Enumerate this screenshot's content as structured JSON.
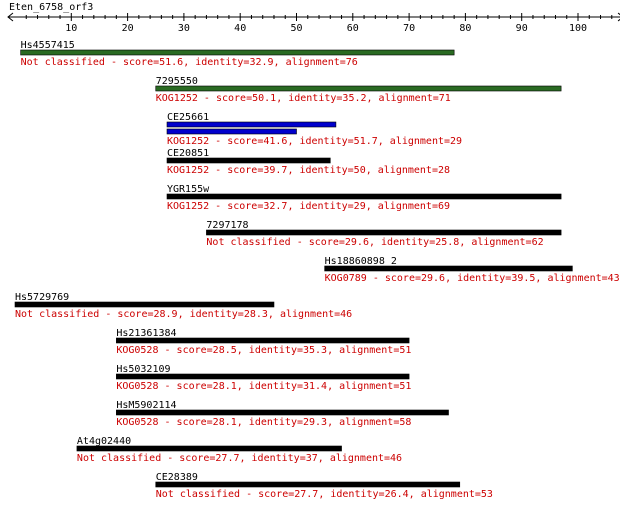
{
  "query": {
    "name": "Eten_6758_orf3"
  },
  "axis": {
    "min": 0,
    "max": 108,
    "labeled_ticks": [
      10,
      20,
      30,
      40,
      50,
      60,
      70,
      80,
      90,
      100
    ],
    "minor_step": 2
  },
  "colors": {
    "green": "#2a6a22",
    "blue": "#0000cc",
    "black": "#000000",
    "red": "#cc0000"
  },
  "hits": [
    {
      "name": "Hs4557415",
      "start": 1,
      "end": 78,
      "color": "green",
      "category": "Not classified",
      "score": "51.6",
      "identity": "32.9",
      "alignment": "76"
    },
    {
      "name": "7295550",
      "start": 25,
      "end": 97,
      "color": "green",
      "category": "KOG1252",
      "score": "50.1",
      "identity": "35.2",
      "alignment": "71"
    },
    {
      "name": "CE25661",
      "start": 27,
      "end": 57,
      "end2": 50,
      "color": "blue",
      "category": "KOG1252",
      "score": "41.6",
      "identity": "51.7",
      "alignment": "29"
    },
    {
      "name": "CE20851",
      "start": 27,
      "end": 56,
      "color": "black",
      "category": "KOG1252",
      "score": "39.7",
      "identity": "50",
      "alignment": "28"
    },
    {
      "name": "YGR155w",
      "start": 27,
      "end": 97,
      "color": "black",
      "category": "KOG1252",
      "score": "32.7",
      "identity": "29",
      "alignment": "69"
    },
    {
      "name": "7297178",
      "start": 34,
      "end": 97,
      "color": "black",
      "category": "Not classified",
      "score": "29.6",
      "identity": "25.8",
      "alignment": "62"
    },
    {
      "name": "Hs18860898_2",
      "start": 55,
      "end": 99,
      "color": "black",
      "category": "KOG0789",
      "score": "29.6",
      "identity": "39.5",
      "alignment": "43"
    },
    {
      "name": "Hs5729769",
      "start": 0,
      "end": 46,
      "color": "black",
      "category": "Not classified",
      "score": "28.9",
      "identity": "28.3",
      "alignment": "46"
    },
    {
      "name": "Hs21361384",
      "start": 18,
      "end": 70,
      "color": "black",
      "category": "KOG0528",
      "score": "28.5",
      "identity": "35.3",
      "alignment": "51"
    },
    {
      "name": "Hs5032109",
      "start": 18,
      "end": 70,
      "color": "black",
      "category": "KOG0528",
      "score": "28.1",
      "identity": "31.4",
      "alignment": "51"
    },
    {
      "name": "HsM5902114",
      "start": 18,
      "end": 77,
      "color": "black",
      "category": "KOG0528",
      "score": "28.1",
      "identity": "29.3",
      "alignment": "58"
    },
    {
      "name": "At4g02440",
      "start": 11,
      "end": 58,
      "color": "black",
      "category": "Not classified",
      "score": "27.7",
      "identity": "37",
      "alignment": "46"
    },
    {
      "name": "CE28389",
      "start": 25,
      "end": 79,
      "color": "black",
      "category": "Not classified",
      "score": "27.7",
      "identity": "26.4",
      "alignment": "53"
    }
  ]
}
